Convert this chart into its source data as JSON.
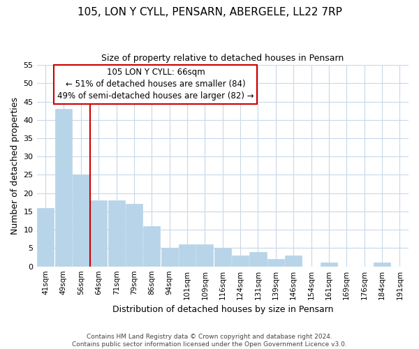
{
  "title": "105, LON Y CYLL, PENSARN, ABERGELE, LL22 7RP",
  "subtitle": "Size of property relative to detached houses in Pensarn",
  "xlabel": "Distribution of detached houses by size in Pensarn",
  "ylabel": "Number of detached properties",
  "bin_labels": [
    "41sqm",
    "49sqm",
    "56sqm",
    "64sqm",
    "71sqm",
    "79sqm",
    "86sqm",
    "94sqm",
    "101sqm",
    "109sqm",
    "116sqm",
    "124sqm",
    "131sqm",
    "139sqm",
    "146sqm",
    "154sqm",
    "161sqm",
    "169sqm",
    "176sqm",
    "184sqm",
    "191sqm"
  ],
  "bar_heights": [
    16,
    43,
    25,
    18,
    18,
    17,
    11,
    5,
    6,
    6,
    5,
    3,
    4,
    2,
    3,
    0,
    1,
    0,
    0,
    1,
    0
  ],
  "bar_color": "#b8d4e8",
  "ref_line_color": "#cc0000",
  "annotation_line0": "105 LON Y CYLL: 66sqm",
  "annotation_line1": "← 51% of detached houses are smaller (84)",
  "annotation_line2": "49% of semi-detached houses are larger (82) →",
  "ylim": [
    0,
    55
  ],
  "yticks": [
    0,
    5,
    10,
    15,
    20,
    25,
    30,
    35,
    40,
    45,
    50,
    55
  ],
  "footer_line1": "Contains HM Land Registry data © Crown copyright and database right 2024.",
  "footer_line2": "Contains public sector information licensed under the Open Government Licence v3.0.",
  "background_color": "#ffffff",
  "grid_color": "#c8d8e8",
  "annotation_box_color": "#ffffff",
  "annotation_box_edge": "#cc0000"
}
